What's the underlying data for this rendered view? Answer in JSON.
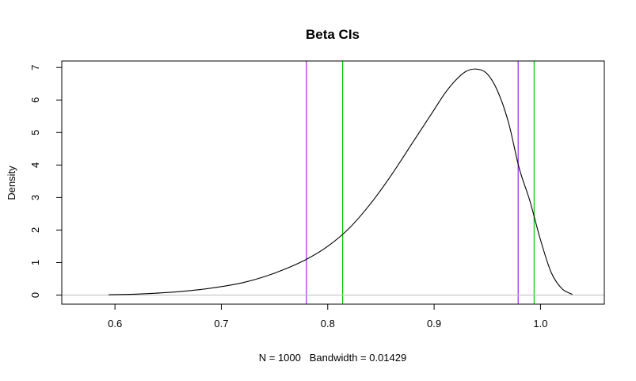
{
  "chart_data": {
    "type": "line",
    "title": "Beta CIs",
    "xlabel": "N = 1000   Bandwidth = 0.01429",
    "ylabel": "Density",
    "xlim": [
      0.55,
      1.06
    ],
    "ylim": [
      -0.28,
      7.2
    ],
    "x_ticks": [
      0.6,
      0.7,
      0.8,
      0.9,
      1.0
    ],
    "x_tick_labels": [
      "0.6",
      "0.7",
      "0.8",
      "0.9",
      "1.0"
    ],
    "y_ticks": [
      0,
      1,
      2,
      3,
      4,
      5,
      6,
      7
    ],
    "y_tick_labels": [
      "0",
      "1",
      "2",
      "3",
      "4",
      "5",
      "6",
      "7"
    ],
    "grid": false,
    "series": [
      {
        "color": "#000000",
        "x": [
          0.594,
          0.62,
          0.65,
          0.68,
          0.7,
          0.72,
          0.74,
          0.76,
          0.78,
          0.8,
          0.82,
          0.84,
          0.86,
          0.88,
          0.9,
          0.91,
          0.92,
          0.93,
          0.94,
          0.95,
          0.96,
          0.97,
          0.98,
          0.99,
          1.0,
          1.01,
          1.02,
          1.03
        ],
        "y": [
          0.01,
          0.03,
          0.08,
          0.17,
          0.26,
          0.38,
          0.56,
          0.8,
          1.1,
          1.5,
          2.05,
          2.8,
          3.7,
          4.7,
          5.7,
          6.2,
          6.6,
          6.88,
          6.95,
          6.8,
          6.25,
          5.3,
          3.9,
          2.9,
          1.7,
          0.7,
          0.2,
          0.02
        ]
      }
    ],
    "reference_lines": [
      {
        "orientation": "vertical",
        "value": 0.78,
        "color": "#a020f0"
      },
      {
        "orientation": "vertical",
        "value": 0.979,
        "color": "#a020f0"
      },
      {
        "orientation": "vertical",
        "value": 0.814,
        "color": "#00cd00"
      },
      {
        "orientation": "vertical",
        "value": 0.994,
        "color": "#00cd00"
      },
      {
        "orientation": "horizontal",
        "value": 0,
        "color": "#bebebe"
      }
    ]
  }
}
